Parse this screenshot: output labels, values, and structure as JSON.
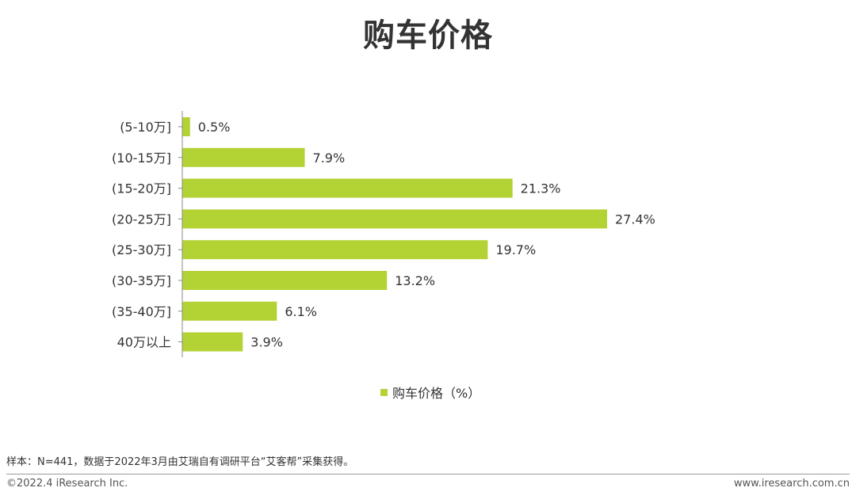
{
  "title": "购车价格",
  "chart_data": {
    "type": "bar",
    "orientation": "horizontal",
    "categories": [
      "(5-10万]",
      "(10-15万]",
      "(15-20万]",
      "(20-25万]",
      "(25-30万]",
      "(30-35万]",
      "(35-40万]",
      "40万以上"
    ],
    "values": [
      0.5,
      7.9,
      21.3,
      27.4,
      19.7,
      13.2,
      6.1,
      3.9
    ],
    "data_labels": [
      "0.5%",
      "7.9%",
      "21.3%",
      "27.4%",
      "19.7%",
      "13.2%",
      "6.1%",
      "3.9%"
    ],
    "series": [
      {
        "name": "购车价格（%）",
        "values": [
          0.5,
          7.9,
          21.3,
          27.4,
          19.7,
          13.2,
          6.1,
          3.9
        ]
      }
    ],
    "xlim": [
      0,
      30
    ],
    "grid": false,
    "legend_position": "bottom-center"
  },
  "colors": {
    "bar": "#b3d234",
    "axis": "#888888",
    "text": "#333333"
  },
  "footer": {
    "note": "样本：N=441，数据于2022年3月由艾瑞自有调研平台“艾客帮”采集获得。",
    "copyright": "©2022.4 iResearch Inc.",
    "website": "www.iresearch.com.cn"
  }
}
